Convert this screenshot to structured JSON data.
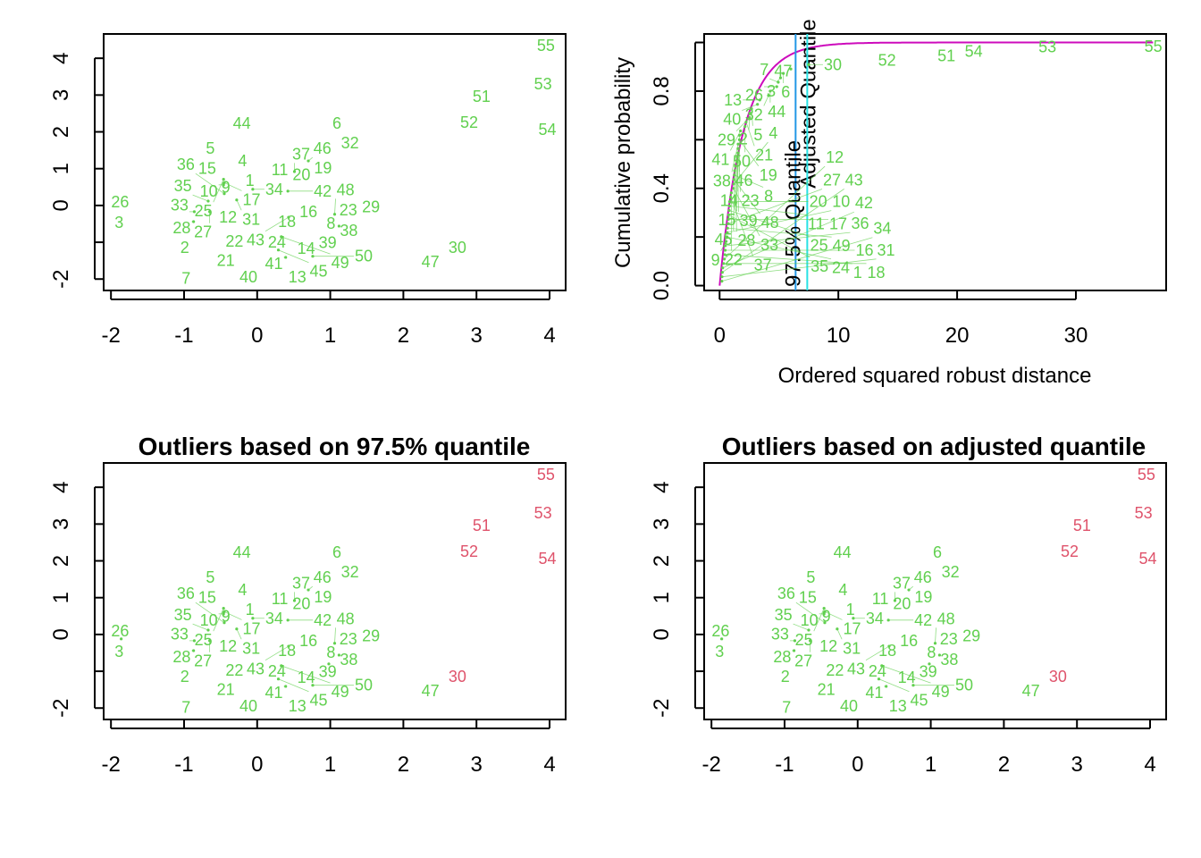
{
  "colors": {
    "regular": "#61D04F",
    "outlier": "#DF536B",
    "ecdf_curve": "#CD0BBC",
    "adjusted_line": "#2297E6",
    "quantile_line": "#28E2E5"
  },
  "chart_data": [
    {
      "type": "scatter",
      "panel": "top-left",
      "title": "",
      "xlim": [
        -2.1,
        4.22
      ],
      "ylim": [
        -2.31,
        4.66
      ],
      "x_ticks": [
        -2,
        -1,
        0,
        1,
        2,
        3,
        4
      ],
      "x_tick_labels": [
        "-2",
        "-1",
        "0",
        "1",
        "2",
        "3",
        "4"
      ],
      "y_ticks": [
        -2,
        -1,
        0,
        1,
        2,
        3,
        4
      ],
      "y_tick_labels": [
        "-2",
        "",
        "0",
        "1",
        "2",
        "3",
        "4"
      ],
      "outliers": []
    },
    {
      "type": "line",
      "panel": "top-right",
      "xlabel": "Ordered squared robust distance",
      "ylabel": "Cumulative probability",
      "xlim": [
        -1.3,
        37.6
      ],
      "ylim": [
        -0.02,
        1.035
      ],
      "x_ticks": [
        0,
        10,
        20,
        30
      ],
      "x_tick_labels": [
        "0",
        "10",
        "20",
        "30"
      ],
      "y_ticks": [
        0,
        0.2,
        0.4,
        0.6,
        0.8,
        1.0
      ],
      "y_tick_labels": [
        "0.0",
        "",
        "0.4",
        "",
        "0.8",
        ""
      ],
      "curve": "chi-square CDF, df = 2",
      "vlines": [
        {
          "label": "Adjusted Quantile",
          "x": 6.4,
          "color": "#2297E6"
        },
        {
          "label": "97.5% Quantile",
          "x": 7.38,
          "color": "#28E2E5"
        }
      ]
    },
    {
      "type": "scatter",
      "panel": "bottom-left",
      "title": "Outliers based on 97.5% quantile",
      "xlim": [
        -2.1,
        4.22
      ],
      "ylim": [
        -2.31,
        4.66
      ],
      "x_ticks": [
        -2,
        -1,
        0,
        1,
        2,
        3,
        4
      ],
      "x_tick_labels": [
        "-2",
        "-1",
        "0",
        "1",
        "2",
        "3",
        "4"
      ],
      "y_ticks": [
        -2,
        -1,
        0,
        1,
        2,
        3,
        4
      ],
      "y_tick_labels": [
        "-2",
        "",
        "0",
        "1",
        "2",
        "3",
        "4"
      ],
      "outliers": [
        "30",
        "51",
        "52",
        "53",
        "54",
        "55"
      ]
    },
    {
      "type": "scatter",
      "panel": "bottom-right",
      "title": "Outliers based on adjusted quantile",
      "xlim": [
        -2.1,
        4.22
      ],
      "ylim": [
        -2.31,
        4.66
      ],
      "x_ticks": [
        -2,
        -1,
        0,
        1,
        2,
        3,
        4
      ],
      "x_tick_labels": [
        "-2",
        "-1",
        "0",
        "1",
        "2",
        "3",
        "4"
      ],
      "y_ticks": [
        -2,
        -1,
        0,
        1,
        2,
        3,
        4
      ],
      "y_tick_labels": [
        "-2",
        "",
        "0",
        "1",
        "2",
        "3",
        "4"
      ],
      "outliers": [
        "30",
        "51",
        "52",
        "53",
        "54",
        "55"
      ]
    }
  ],
  "points": [
    {
      "label": "1",
      "x": -0.1,
      "y": 0.68,
      "d": 0.44
    },
    {
      "label": "2",
      "x": -0.99,
      "y": -1.14,
      "d": 2.56
    },
    {
      "label": "3",
      "x": -1.89,
      "y": -0.46,
      "d": 5.13
    },
    {
      "label": "4",
      "x": -0.2,
      "y": 1.14,
      "d": 1.19
    },
    {
      "label": "5",
      "x": -0.64,
      "y": 1.55,
      "d": 2.69
    },
    {
      "label": "6",
      "x": 1.09,
      "y": 2.23,
      "d": 5.37
    },
    {
      "label": "7",
      "x": -0.92,
      "y": -2.09,
      "d": 4.94
    },
    {
      "label": "8",
      "x": 1.01,
      "y": -0.49,
      "d": 1.24
    },
    {
      "label": "9",
      "x": -0.43,
      "y": 0.49,
      "d": 0.55
    },
    {
      "label": "10",
      "x": -0.46,
      "y": 0.56,
      "d": 0.65
    },
    {
      "label": "11",
      "x": 0.31,
      "y": 0.97,
      "d": 0.84
    },
    {
      "label": "12",
      "x": -0.4,
      "y": -0.32,
      "d": 0.4
    },
    {
      "label": "13",
      "x": 0.55,
      "y": -1.94,
      "d": 3.38
    },
    {
      "label": "14",
      "x": 0.67,
      "y": -1.17,
      "d": 1.54
    },
    {
      "label": "15",
      "x": -0.61,
      "y": 1.0,
      "d": 1.46
    },
    {
      "label": "16",
      "x": 0.7,
      "y": -0.17,
      "d": 0.47
    },
    {
      "label": "17",
      "x": -0.45,
      "y": 0.62,
      "d": 0.74
    },
    {
      "label": "18",
      "x": 0.48,
      "y": -0.44,
      "d": 0.34
    },
    {
      "label": "19",
      "x": 0.9,
      "y": 1.02,
      "d": 1.67
    },
    {
      "label": "20",
      "x": 0.57,
      "y": 0.83,
      "d": 0.85
    },
    {
      "label": "21",
      "x": -0.43,
      "y": -1.5,
      "d": 2.23
    },
    {
      "label": "22",
      "x": -0.31,
      "y": -0.97,
      "d": 0.99
    },
    {
      "label": "23",
      "x": 1.21,
      "y": -0.12,
      "d": 1.55
    },
    {
      "label": "24",
      "x": 0.27,
      "y": -0.85,
      "d": 0.63
    },
    {
      "label": "25",
      "x": -0.46,
      "y": 0.71,
      "d": 0.81
    },
    {
      "label": "26",
      "x": -1.86,
      "y": -0.12,
      "d": 4.81
    },
    {
      "label": "27",
      "x": -0.65,
      "y": -0.17,
      "d": 0.72
    },
    {
      "label": "28",
      "x": -0.87,
      "y": -0.44,
      "d": 1.33
    },
    {
      "label": "29",
      "x": 1.52,
      "y": -0.04,
      "d": 2.53
    },
    {
      "label": "30",
      "x": 2.74,
      "y": -1.14,
      "d": 7.5
    },
    {
      "label": "31",
      "x": -0.28,
      "y": 0.15,
      "d": 0.2
    },
    {
      "label": "32",
      "x": 1.27,
      "y": 1.7,
      "d": 4.12
    },
    {
      "label": "33",
      "x": -0.86,
      "y": -0.17,
      "d": 1.17
    },
    {
      "label": "34",
      "x": -0.06,
      "y": 0.44,
      "d": 0.19
    },
    {
      "label": "35",
      "x": -0.67,
      "y": 0.12,
      "d": 0.75
    },
    {
      "label": "36",
      "x": -0.45,
      "y": 0.32,
      "d": 0.47
    },
    {
      "label": "37",
      "x": 0.51,
      "y": 0.92,
      "d": 0.92
    },
    {
      "label": "38",
      "x": 1.12,
      "y": -0.56,
      "d": 1.56
    },
    {
      "label": "39",
      "x": 0.98,
      "y": -0.8,
      "d": 1.49
    },
    {
      "label": "40",
      "x": -0.12,
      "y": -1.94,
      "d": 3.19
    },
    {
      "label": "41",
      "x": 0.39,
      "y": -1.41,
      "d": 1.76
    },
    {
      "label": "42",
      "x": 0.42,
      "y": 0.39,
      "d": 0.26
    },
    {
      "label": "43",
      "x": 0.43,
      "y": -0.32,
      "d": 0.23
    },
    {
      "label": "44",
      "x": -0.21,
      "y": 2.23,
      "d": 4.26
    },
    {
      "label": "45",
      "x": 0.29,
      "y": -1.21,
      "d": 1.27
    },
    {
      "label": "46",
      "x": 0.7,
      "y": 1.21,
      "d": 1.67
    },
    {
      "label": "47",
      "x": 2.37,
      "y": -1.53,
      "d": 6.0
    },
    {
      "label": "48",
      "x": 1.06,
      "y": -0.24,
      "d": 1.2
    },
    {
      "label": "49",
      "x": 0.33,
      "y": -0.85,
      "d": 0.67
    },
    {
      "label": "50",
      "x": 0.76,
      "y": -1.38,
      "d": 2.14
    },
    {
      "label": "51",
      "x": 3.07,
      "y": 2.96,
      "d": 19.1
    },
    {
      "label": "52",
      "x": 2.9,
      "y": 2.26,
      "d": 14.1
    },
    {
      "label": "53",
      "x": 3.91,
      "y": 3.3,
      "d": 27.6
    },
    {
      "label": "54",
      "x": 3.97,
      "y": 2.06,
      "d": 21.4
    },
    {
      "label": "55",
      "x": 3.95,
      "y": 4.34,
      "d": 36.2
    }
  ]
}
